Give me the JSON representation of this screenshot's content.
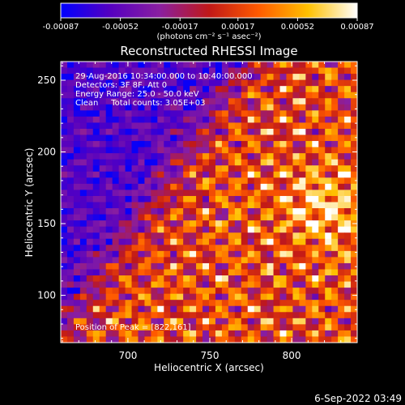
{
  "chart_data": {
    "type": "heatmap",
    "title": "Reconstructed RHESSI Image",
    "info_lines": [
      "29-Aug-2016 10:34:00.000 to 10:40:00.000",
      "Detectors: 3F 8F, Att 0",
      "Energy Range: 25.0 - 50.0 keV",
      "Clean     Total counts: 3.05E+03"
    ],
    "peak_label": "Position of Peak = [822,161]",
    "xlabel": "Heliocentric X (arcsec)",
    "ylabel": "Heliocentric Y (arcsec)",
    "xlim": [
      659,
      840
    ],
    "ylim": [
      67,
      263
    ],
    "x_ticks": [
      700,
      750,
      800
    ],
    "y_ticks": [
      100,
      150,
      200,
      250
    ],
    "peak": [
      822,
      161
    ],
    "colorbar": {
      "label": "(photons cm⁻² s⁻¹ asec⁻²)",
      "ticks": [
        "-0.00087",
        "-0.00052",
        "-0.00017",
        "0.00017",
        "0.00052",
        "0.00087"
      ],
      "range": [
        -0.00087,
        0.00087
      ],
      "colors": [
        "#0000ff",
        "#5500c0",
        "#8a1fa0",
        "#c01818",
        "#ff5a00",
        "#ffc000",
        "#ffffff"
      ]
    },
    "grid": false
  },
  "footer": {
    "timestamp": "6-Sep-2022 03:49"
  }
}
